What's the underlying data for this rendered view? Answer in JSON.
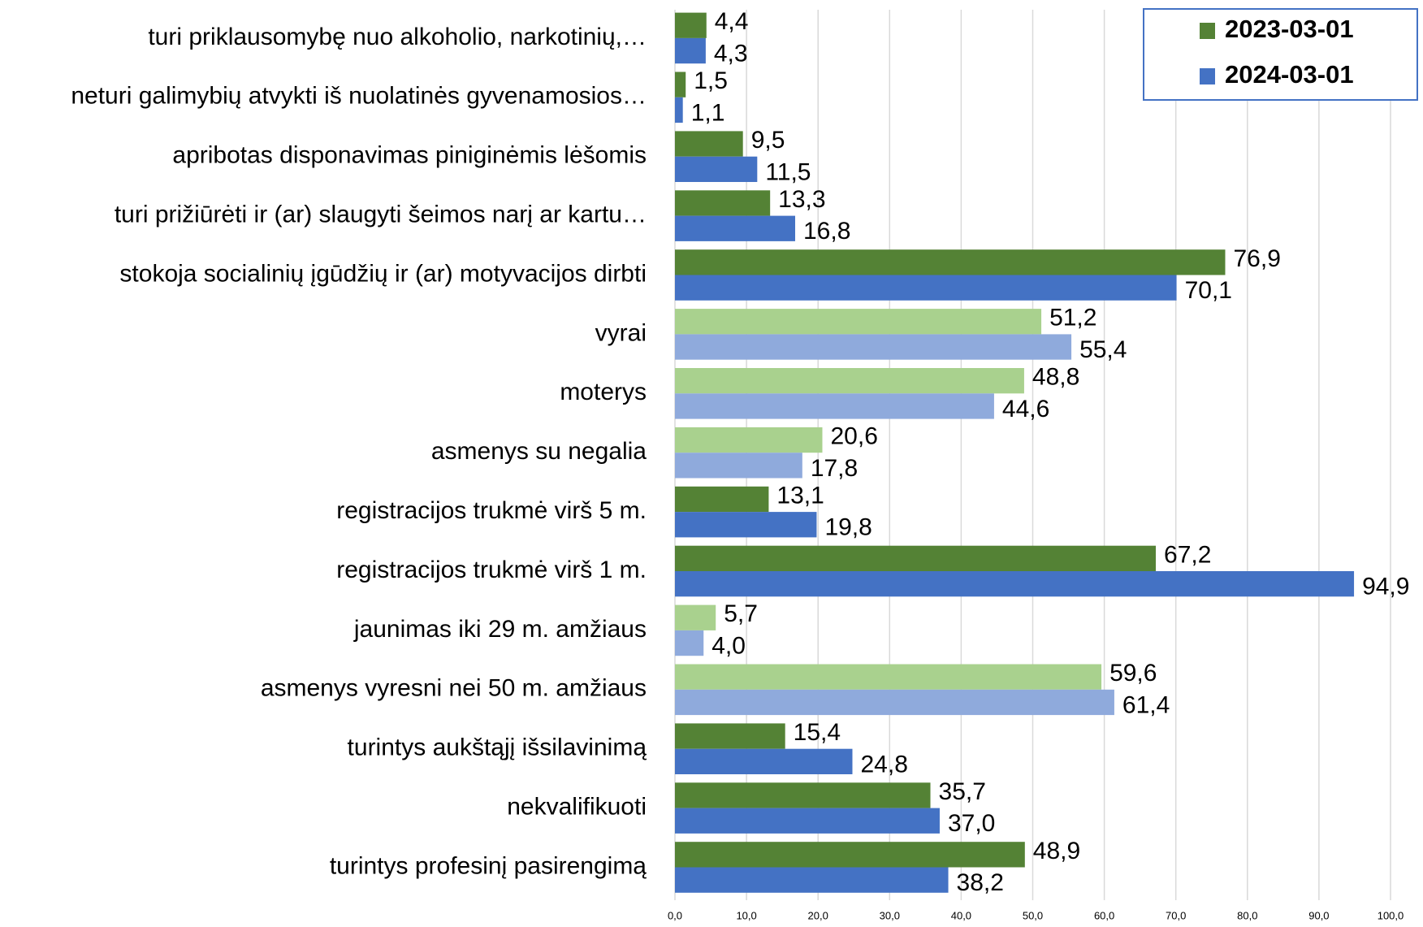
{
  "chart_data": {
    "type": "bar",
    "orientation": "horizontal",
    "categories": [
      "turi priklausomybę nuo alkoholio, narkotinių,…",
      "neturi galimybių atvykti iš nuolatinės gyvenamosios…",
      "apribotas disponavimas piniginėmis lėšomis",
      "turi prižiūrėti ir (ar) slaugyti šeimos narį ar kartu…",
      "stokoja socialinių įgūdžių ir (ar) motyvacijos dirbti",
      "vyrai",
      "moterys",
      "asmenys su negalia",
      "registracijos trukmė virš 5 m.",
      "registracijos trukmė virš 1 m.",
      "jaunimas iki 29 m. amžiaus",
      "asmenys vyresni nei 50 m. amžiaus",
      "turintys aukštąjį išsilavinimą",
      "nekvalifikuoti",
      "turintys profesinį pasirengimą"
    ],
    "series": [
      {
        "name": "2023-03-01",
        "color": "#548235",
        "colors": [
          "#548235",
          "#548235",
          "#548235",
          "#548235",
          "#548235",
          "#a9d18e",
          "#a9d18e",
          "#a9d18e",
          "#548235",
          "#548235",
          "#a9d18e",
          "#a9d18e",
          "#548235",
          "#548235",
          "#548235"
        ],
        "values": [
          4.4,
          1.5,
          9.5,
          13.3,
          76.9,
          51.2,
          48.8,
          20.6,
          13.1,
          67.2,
          5.7,
          59.6,
          15.4,
          35.7,
          48.9
        ],
        "value_labels": [
          "4,4",
          "1,5",
          "9,5",
          "13,3",
          "76,9",
          "51,2",
          "48,8",
          "20,6",
          "13,1",
          "67,2",
          "5,7",
          "59,6",
          "15,4",
          "35,7",
          "48,9"
        ]
      },
      {
        "name": "2024-03-01",
        "color": "#4472c4",
        "colors": [
          "#4472c4",
          "#4472c4",
          "#4472c4",
          "#4472c4",
          "#4472c4",
          "#8faadc",
          "#8faadc",
          "#8faadc",
          "#4472c4",
          "#4472c4",
          "#8faadc",
          "#8faadc",
          "#4472c4",
          "#4472c4",
          "#4472c4"
        ],
        "values": [
          4.3,
          1.1,
          11.5,
          16.8,
          70.1,
          55.4,
          44.6,
          17.8,
          19.8,
          94.9,
          4.0,
          61.4,
          24.8,
          37.0,
          38.2
        ],
        "value_labels": [
          "4,3",
          "1,1",
          "11,5",
          "16,8",
          "70,1",
          "55,4",
          "44,6",
          "17,8",
          "19,8",
          "94,9",
          "4,0",
          "61,4",
          "24,8",
          "37,0",
          "38,2"
        ]
      }
    ],
    "xlim": [
      0,
      100
    ],
    "xticks": [
      {
        "value": 0,
        "label": "0,0"
      },
      {
        "value": 10,
        "label": "10,0"
      },
      {
        "value": 20,
        "label": "20,0"
      },
      {
        "value": 30,
        "label": "30,0"
      },
      {
        "value": 40,
        "label": "40,0"
      },
      {
        "value": 50,
        "label": "50,0"
      },
      {
        "value": 60,
        "label": "60,0"
      },
      {
        "value": 70,
        "label": "70,0"
      },
      {
        "value": 80,
        "label": "80,0"
      },
      {
        "value": 90,
        "label": "90,0"
      },
      {
        "value": 100,
        "label": "100,0"
      }
    ],
    "grid": true,
    "legend": "top-right"
  }
}
